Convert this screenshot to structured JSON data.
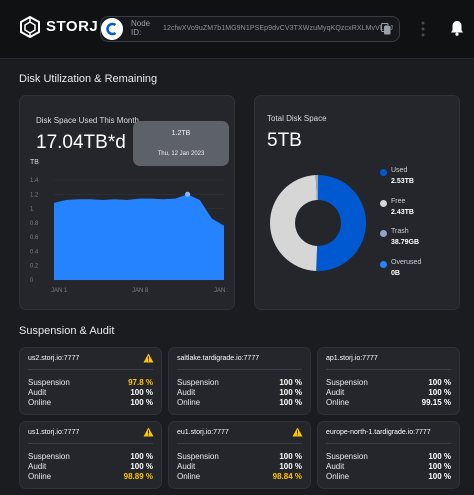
{
  "header": {
    "logo_text": "STORJ",
    "node_label": "Node ID:",
    "node_id": "12cfwXVo9uZM7b1MG9N1PSEp9dvCV3TXWzuMyqKQzcxRXLMvVLQJ"
  },
  "disk": {
    "section_title": "Disk Utilization & Remaining",
    "used_title": "Disk Space Used This Month",
    "used_value": "17.04TB*d",
    "tooltip_value": "1.2TB",
    "tooltip_date": "Thu, 12 Jan 2023",
    "total_title": "Total Disk Space",
    "total_value": "5TB",
    "legend": [
      {
        "name": "Used",
        "value": "2.53TB",
        "color": "#0059d0"
      },
      {
        "name": "Free",
        "value": "2.43TB",
        "color": "#d6d6d6"
      },
      {
        "name": "Trash",
        "value": "38.79GB",
        "color": "#8fa7c6"
      },
      {
        "name": "Overused",
        "value": "0B",
        "color": "#2683ff"
      }
    ]
  },
  "chart_data": [
    {
      "type": "area",
      "ylabel": "TB",
      "yticks": [
        "1.4",
        "1.2",
        "1",
        "0.8",
        "0.6",
        "0.4",
        "0.2",
        "0"
      ],
      "ylim": [
        0,
        1.4
      ],
      "xticks": [
        "JAN 1",
        "JAN 8",
        "JAN 15"
      ],
      "x": [
        1,
        2,
        3,
        4,
        5,
        6,
        7,
        8,
        9,
        10,
        11,
        12,
        13,
        14,
        15
      ],
      "values": [
        1.08,
        1.12,
        1.13,
        1.13,
        1.12,
        1.13,
        1.12,
        1.14,
        1.14,
        1.13,
        1.14,
        1.2,
        1.12,
        0.86,
        0.76
      ],
      "color": "#2683ff"
    },
    {
      "type": "pie",
      "categories": [
        "Used",
        "Free",
        "Trash",
        "Overused"
      ],
      "values": [
        2.53,
        2.43,
        0.03879,
        0
      ],
      "colors": [
        "#0059d0",
        "#d6d6d6",
        "#8fa7c6",
        "#2683ff"
      ]
    }
  ],
  "audit": {
    "section_title": "Suspension & Audit",
    "labels": {
      "suspension": "Suspension",
      "audit": "Audit",
      "online": "Online"
    },
    "satellites": [
      {
        "name": "us2.storj.io:7777",
        "warning": true,
        "suspension": "97.8 %",
        "audit": "100 %",
        "online": "100 %",
        "suspension_warn": true,
        "online_warn": false
      },
      {
        "name": "saltlake.tardigrade.io:7777",
        "warning": false,
        "suspension": "100 %",
        "audit": "100 %",
        "online": "100 %",
        "suspension_warn": false,
        "online_warn": false
      },
      {
        "name": "ap1.storj.io:7777",
        "warning": false,
        "suspension": "100 %",
        "audit": "100 %",
        "online": "99.15 %",
        "suspension_warn": false,
        "online_warn": false
      },
      {
        "name": "us1.storj.io:7777",
        "warning": true,
        "suspension": "100 %",
        "audit": "100 %",
        "online": "98.89 %",
        "suspension_warn": false,
        "online_warn": true
      },
      {
        "name": "eu1.storj.io:7777",
        "warning": true,
        "suspension": "100 %",
        "audit": "100 %",
        "online": "98.84 %",
        "suspension_warn": false,
        "online_warn": true
      },
      {
        "name": "europe-north-1.tardigrade.io:7777",
        "warning": false,
        "suspension": "100 %",
        "audit": "100 %",
        "online": "100 %",
        "suspension_warn": false,
        "online_warn": false
      }
    ]
  }
}
